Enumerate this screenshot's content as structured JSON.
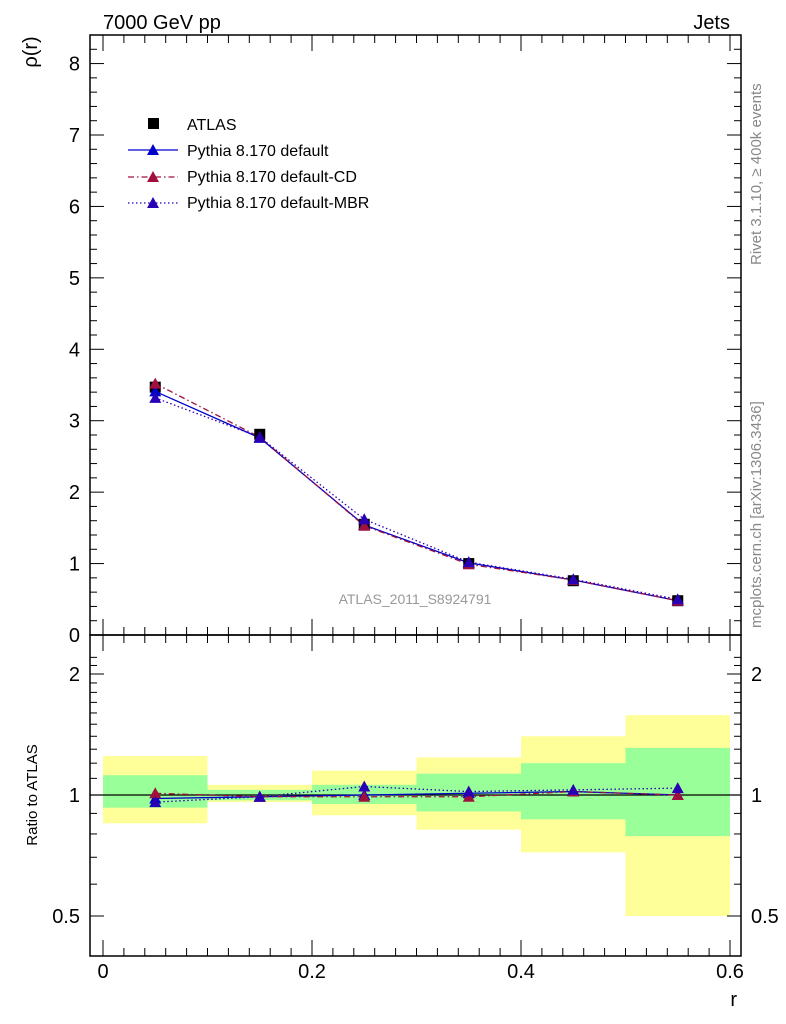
{
  "header": {
    "left": "7000 GeV pp",
    "right": "Jets"
  },
  "side_labels": {
    "rivet": "Rivet 3.1.10, ≥ 400k events",
    "mcplots": "mcplots.cern.ch [arXiv:1306.3436]"
  },
  "watermark": "ATLAS_2011_S8924791",
  "colors": {
    "atlas": "#000000",
    "default": "#0000cc",
    "cd": "#a0103c",
    "mbr": "#2a00b4",
    "band_outer": "#ffff99",
    "band_inner": "#99ff99"
  },
  "chart_data": [
    {
      "type": "line",
      "panel": "main",
      "ylabel": "ρ(r)",
      "xlabel": "r",
      "xlim": [
        0,
        0.6
      ],
      "ylim": [
        0,
        8.4
      ],
      "yticks": [
        "0",
        "1",
        "2",
        "3",
        "4",
        "5",
        "6",
        "7",
        "8"
      ],
      "xticks": [
        "0",
        "0.2",
        "0.4",
        "0.6"
      ],
      "legend_position": "top-left",
      "x": [
        0.05,
        0.15,
        0.25,
        0.35,
        0.45,
        0.55
      ],
      "series": [
        {
          "name": "ATLAS",
          "marker": "square",
          "line": "none",
          "values": [
            3.47,
            2.81,
            1.55,
            1.0,
            0.76,
            0.48
          ]
        },
        {
          "name": "Pythia 8.170 default",
          "marker": "triangle",
          "line": "solid",
          "values": [
            3.41,
            2.76,
            1.54,
            1.01,
            0.77,
            0.48
          ]
        },
        {
          "name": "Pythia 8.170 default-CD",
          "marker": "triangle",
          "line": "dashdot",
          "values": [
            3.52,
            2.77,
            1.53,
            0.99,
            0.77,
            0.48
          ]
        },
        {
          "name": "Pythia 8.170 default-MBR",
          "marker": "triangle",
          "line": "dotted",
          "values": [
            3.32,
            2.77,
            1.62,
            1.02,
            0.78,
            0.5
          ]
        }
      ]
    },
    {
      "type": "line",
      "panel": "ratio",
      "ylabel": "Ratio to ATLAS",
      "xlabel": "r",
      "xlim": [
        0,
        0.6
      ],
      "ylim": [
        0.4,
        2.3
      ],
      "yticks": [
        "0.5",
        "1",
        "2"
      ],
      "yticks_right": [
        "0.5",
        "1",
        "2"
      ],
      "xticks": [
        "0",
        "0.2",
        "0.4",
        "0.6"
      ],
      "bins": [
        [
          0.0,
          0.1
        ],
        [
          0.1,
          0.2
        ],
        [
          0.2,
          0.3
        ],
        [
          0.3,
          0.4
        ],
        [
          0.4,
          0.5
        ],
        [
          0.5,
          0.6
        ]
      ],
      "band_outer": [
        [
          0.85,
          1.25
        ],
        [
          0.96,
          1.06
        ],
        [
          0.89,
          1.15
        ],
        [
          0.82,
          1.24
        ],
        [
          0.72,
          1.4
        ],
        [
          0.5,
          1.58
        ]
      ],
      "band_inner": [
        [
          0.93,
          1.12
        ],
        [
          0.97,
          1.03
        ],
        [
          0.95,
          1.06
        ],
        [
          0.91,
          1.13
        ],
        [
          0.87,
          1.2
        ],
        [
          0.79,
          1.31
        ]
      ],
      "x": [
        0.05,
        0.15,
        0.25,
        0.35,
        0.45,
        0.55
      ],
      "series": [
        {
          "name": "Pythia 8.170 default",
          "values": [
            0.98,
            0.99,
            1.0,
            1.01,
            1.02,
            1.0
          ]
        },
        {
          "name": "Pythia 8.170 default-CD",
          "values": [
            1.01,
            0.99,
            0.99,
            0.99,
            1.02,
            1.0
          ]
        },
        {
          "name": "Pythia 8.170 default-MBR",
          "values": [
            0.96,
            0.99,
            1.05,
            1.02,
            1.03,
            1.04
          ]
        }
      ]
    }
  ]
}
